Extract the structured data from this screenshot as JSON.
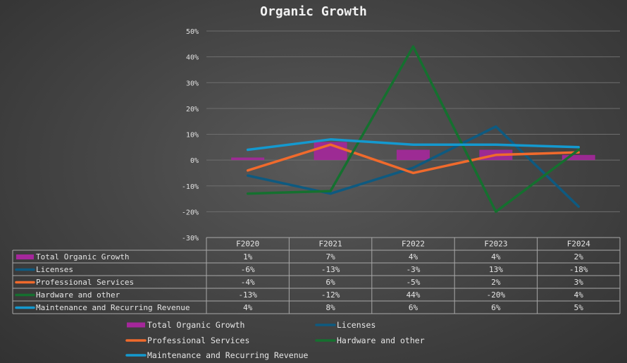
{
  "chart_data": {
    "type": "bar+line",
    "title": "Organic Growth",
    "categories": [
      "F2020",
      "F2021",
      "F2022",
      "F2023",
      "F2024"
    ],
    "ylim": [
      -30,
      50
    ],
    "yticks": [
      -30,
      -20,
      -10,
      0,
      10,
      20,
      30,
      40,
      50
    ],
    "ytick_labels": [
      "-30%",
      "-20%",
      "-10%",
      "0%",
      "10%",
      "20%",
      "30%",
      "40%",
      "50%"
    ],
    "grid": true,
    "data_table": true,
    "legend_position": "bottom",
    "series": [
      {
        "name": "Total Organic Growth",
        "kind": "bar",
        "color": "#a5279b",
        "values": [
          1,
          7,
          4,
          4,
          2
        ],
        "labels": [
          "1%",
          "7%",
          "4%",
          "4%",
          "2%"
        ]
      },
      {
        "name": "Licenses",
        "kind": "line",
        "color": "#0e5a80",
        "values": [
          -6,
          -13,
          -3,
          13,
          -18
        ],
        "labels": [
          "-6%",
          "-13%",
          "-3%",
          "13%",
          "-18%"
        ]
      },
      {
        "name": "Professional Services",
        "kind": "line",
        "color": "#f06a2c",
        "values": [
          -4,
          6,
          -5,
          2,
          3
        ],
        "labels": [
          "-4%",
          "6%",
          "-5%",
          "2%",
          "3%"
        ]
      },
      {
        "name": "Hardware and other",
        "kind": "line",
        "color": "#15702f",
        "values": [
          -13,
          -12,
          44,
          -20,
          4
        ],
        "labels": [
          "-13%",
          "-12%",
          "44%",
          "-20%",
          "4%"
        ]
      },
      {
        "name": "Maintenance and Recurring Revenue",
        "kind": "line",
        "color": "#1499cf",
        "values": [
          4,
          8,
          6,
          6,
          5
        ],
        "labels": [
          "4%",
          "8%",
          "6%",
          "6%",
          "5%"
        ]
      }
    ]
  }
}
